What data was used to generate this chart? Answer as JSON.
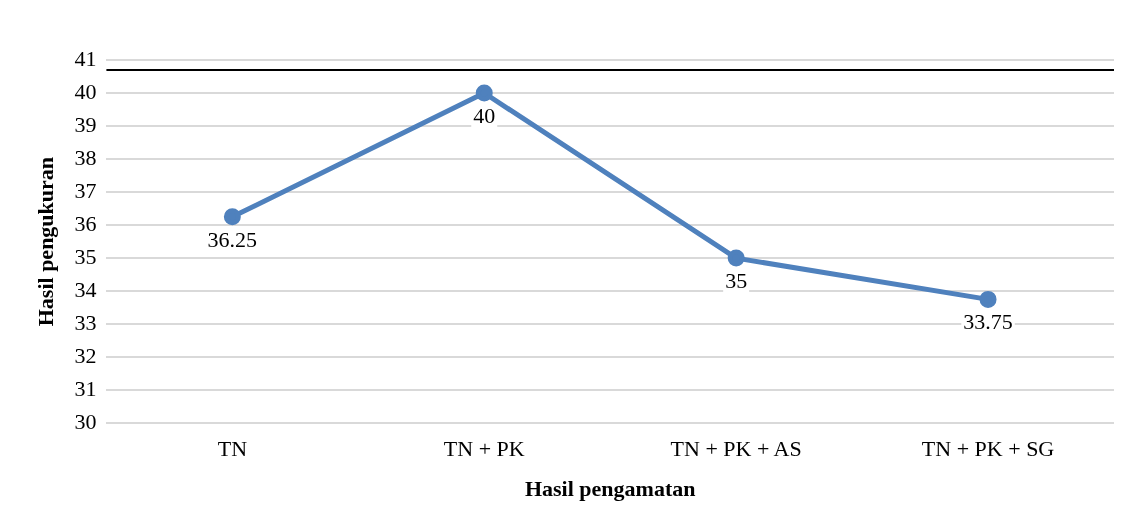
{
  "chart_data": {
    "type": "line",
    "xlabel": "Hasil pengamatan",
    "ylabel": "Hasil pengukuran",
    "categories": [
      "TN",
      "TN + PK",
      "TN + PK + AS",
      "TN + PK + SG"
    ],
    "series": [
      {
        "color": "#4f81bd",
        "values": [
          36.25,
          40,
          35,
          33.75
        ]
      }
    ],
    "ylim": [
      30,
      41
    ],
    "yticks": [
      30,
      31,
      32,
      33,
      34,
      35,
      36,
      37,
      38,
      39,
      40,
      41
    ],
    "ref_lines": [
      {
        "axis": "y",
        "value": 40.7,
        "color": "#000000"
      }
    ],
    "grid": "y",
    "legend": false,
    "marker": "circle",
    "line_style": "solid",
    "data_labels": true
  }
}
